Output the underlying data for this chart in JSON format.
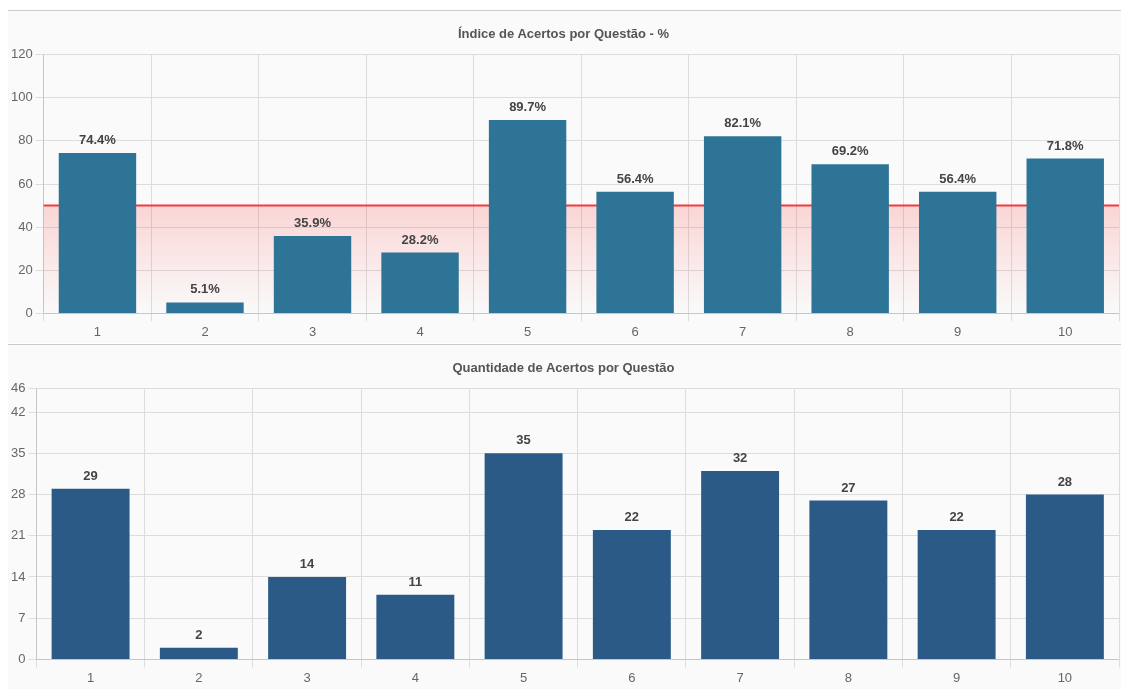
{
  "chart_data": [
    {
      "type": "bar",
      "title": "Índice de Acertos por Questão - %",
      "categories": [
        "1",
        "2",
        "3",
        "4",
        "5",
        "6",
        "7",
        "8",
        "9",
        "10"
      ],
      "values": [
        74.4,
        5.1,
        35.9,
        28.2,
        89.7,
        56.4,
        82.1,
        69.2,
        56.4,
        71.8
      ],
      "value_labels": [
        "74.4%",
        "5.1%",
        "35.9%",
        "28.2%",
        "89.7%",
        "56.4%",
        "82.1%",
        "69.2%",
        "56.4%",
        "71.8%"
      ],
      "color": "#2e7497",
      "ylim": [
        0,
        120
      ],
      "yticks": [
        0,
        20,
        40,
        60,
        80,
        100,
        120
      ],
      "grid": true,
      "ref_lines": [
        {
          "axis": "y",
          "value": 50,
          "color": "#f03c3c"
        }
      ],
      "bands": [
        {
          "axis": "y",
          "from": 0,
          "to": 50,
          "color": "#ff0000"
        }
      ]
    },
    {
      "type": "bar",
      "title": "Quantidade de Acertos por Questão",
      "categories": [
        "1",
        "2",
        "3",
        "4",
        "5",
        "6",
        "7",
        "8",
        "9",
        "10"
      ],
      "values": [
        29,
        2,
        14,
        11,
        35,
        22,
        32,
        27,
        22,
        28
      ],
      "data_labels": true,
      "color": "#2b5a87",
      "ylim": [
        0,
        46
      ],
      "yticks": [
        0,
        7,
        14,
        21,
        28,
        35,
        42,
        46
      ],
      "grid": true
    }
  ]
}
